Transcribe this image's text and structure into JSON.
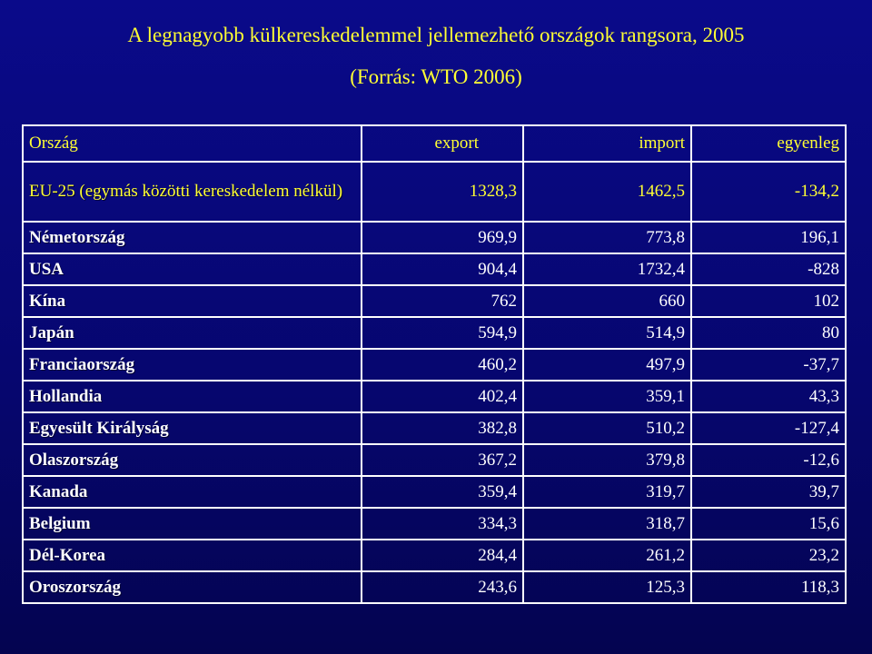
{
  "title": "A legnagyobb külkereskedelemmel jellemezhető országok rangsora, 2005",
  "source": "(Forrás: WTO 2006)",
  "table": {
    "headers": [
      "Ország",
      "export",
      "import",
      "egyenleg"
    ],
    "rows": [
      {
        "country": "EU-25 (egymás közötti kereskedelem nélkül)",
        "export": "1328,3",
        "import": "1462,5",
        "balance": "-134,2"
      },
      {
        "country": "Németország",
        "export": "969,9",
        "import": "773,8",
        "balance": "196,1"
      },
      {
        "country": "USA",
        "export": "904,4",
        "import": "1732,4",
        "balance": "-828"
      },
      {
        "country": "Kína",
        "export": "762",
        "import": "660",
        "balance": "102"
      },
      {
        "country": "Japán",
        "export": "594,9",
        "import": "514,9",
        "balance": "80"
      },
      {
        "country": "Franciaország",
        "export": "460,2",
        "import": "497,9",
        "balance": "-37,7"
      },
      {
        "country": "Hollandia",
        "export": "402,4",
        "import": "359,1",
        "balance": "43,3"
      },
      {
        "country": "Egyesült Királyság",
        "export": "382,8",
        "import": "510,2",
        "balance": "-127,4"
      },
      {
        "country": "Olaszország",
        "export": "367,2",
        "import": "379,8",
        "balance": "-12,6"
      },
      {
        "country": "Kanada",
        "export": "359,4",
        "import": "319,7",
        "balance": "39,7"
      },
      {
        "country": "Belgium",
        "export": "334,3",
        "import": "318,7",
        "balance": "15,6"
      },
      {
        "country": "Dél-Korea",
        "export": "284,4",
        "import": "261,2",
        "balance": "23,2"
      },
      {
        "country": "Oroszország",
        "export": "243,6",
        "import": "125,3",
        "balance": "118,3"
      }
    ]
  },
  "colors": {
    "background": "#06066e",
    "highlight_text": "#ffff33",
    "body_text": "#ffffff",
    "grid": "#ffffff"
  }
}
